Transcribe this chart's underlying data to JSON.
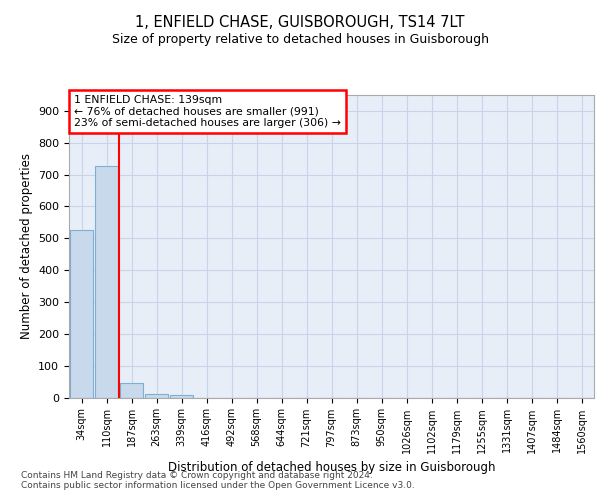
{
  "title1": "1, ENFIELD CHASE, GUISBOROUGH, TS14 7LT",
  "title2": "Size of property relative to detached houses in Guisborough",
  "xlabel": "Distribution of detached houses by size in Guisborough",
  "ylabel": "Number of detached properties",
  "categories": [
    "34sqm",
    "110sqm",
    "187sqm",
    "263sqm",
    "339sqm",
    "416sqm",
    "492sqm",
    "568sqm",
    "644sqm",
    "721sqm",
    "797sqm",
    "873sqm",
    "950sqm",
    "1026sqm",
    "1102sqm",
    "1179sqm",
    "1255sqm",
    "1331sqm",
    "1407sqm",
    "1484sqm",
    "1560sqm"
  ],
  "values": [
    527,
    728,
    46,
    12,
    7,
    0,
    0,
    0,
    0,
    0,
    0,
    0,
    0,
    0,
    0,
    0,
    0,
    0,
    0,
    0,
    0
  ],
  "bar_color": "#c9d9ec",
  "bar_edge_color": "#7bafd4",
  "red_line_x": 1.5,
  "red_line_color": "red",
  "annotation_text": "1 ENFIELD CHASE: 139sqm\n← 76% of detached houses are smaller (991)\n23% of semi-detached houses are larger (306) →",
  "annotation_box_facecolor": "white",
  "annotation_box_edgecolor": "red",
  "grid_color": "#c8d4e8",
  "plot_bg_color": "#e8eef8",
  "ylim_max": 950,
  "yticks": [
    0,
    100,
    200,
    300,
    400,
    500,
    600,
    700,
    800,
    900
  ],
  "footer1": "Contains HM Land Registry data © Crown copyright and database right 2024.",
  "footer2": "Contains public sector information licensed under the Open Government Licence v3.0."
}
